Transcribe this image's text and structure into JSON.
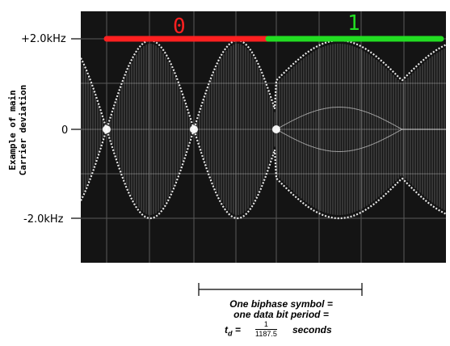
{
  "axis": {
    "top_label": "+2.0kHz",
    "mid_label": "0",
    "bottom_label": "-2.0kHz",
    "side_label_line1": "Example of main",
    "side_label_line2": "Carrier deviation"
  },
  "bits": [
    {
      "label": "0",
      "color": "#ff2020"
    },
    {
      "label": "1",
      "color": "#22dd22"
    }
  ],
  "caption": {
    "line1": "One biphase symbol =",
    "line2": "one data bit period =",
    "formula_lhs": "t",
    "formula_sub": "d",
    "formula_eq": " = ",
    "formula_num": "1",
    "formula_den": "1187.5",
    "formula_unit": "seconds"
  },
  "colors": {
    "screen": "#141414",
    "trace": "#e8e8e8",
    "grid": "#5a5a5a"
  }
}
